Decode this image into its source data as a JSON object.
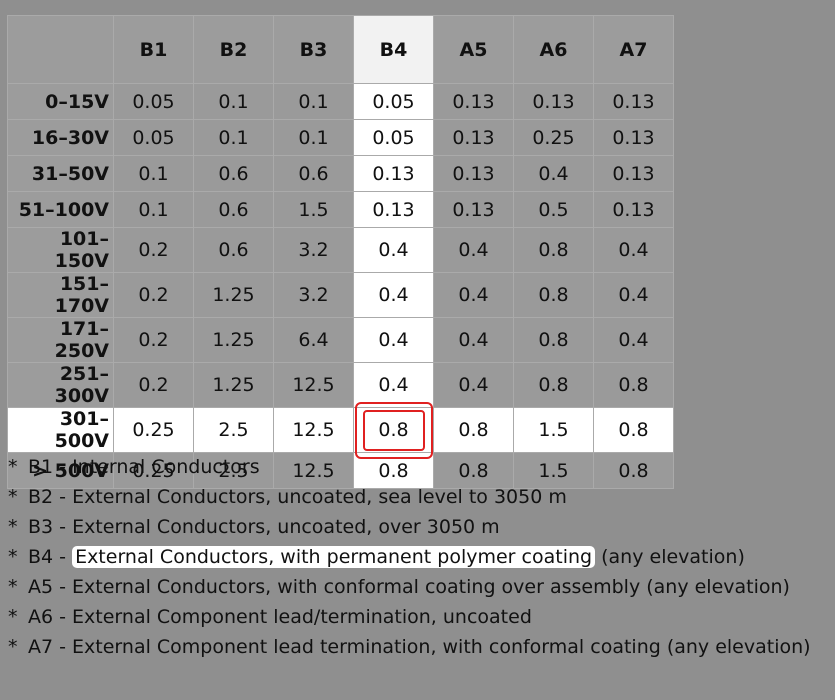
{
  "columns": [
    "B1",
    "B2",
    "B3",
    "B4",
    "A5",
    "A6",
    "A7"
  ],
  "rows": [
    {
      "label": "0–15V",
      "values": [
        "0.05",
        "0.1",
        "0.1",
        "0.05",
        "0.13",
        "0.13",
        "0.13"
      ]
    },
    {
      "label": "16–30V",
      "values": [
        "0.05",
        "0.1",
        "0.1",
        "0.05",
        "0.13",
        "0.25",
        "0.13"
      ]
    },
    {
      "label": "31–50V",
      "values": [
        "0.1",
        "0.6",
        "0.6",
        "0.13",
        "0.13",
        "0.4",
        "0.13"
      ]
    },
    {
      "label": "51–100V",
      "values": [
        "0.1",
        "0.6",
        "1.5",
        "0.13",
        "0.13",
        "0.5",
        "0.13"
      ]
    },
    {
      "label": "101–150V",
      "values": [
        "0.2",
        "0.6",
        "3.2",
        "0.4",
        "0.4",
        "0.8",
        "0.4"
      ]
    },
    {
      "label": "151–170V",
      "values": [
        "0.2",
        "1.25",
        "3.2",
        "0.4",
        "0.4",
        "0.8",
        "0.4"
      ]
    },
    {
      "label": "171–250V",
      "values": [
        "0.2",
        "1.25",
        "6.4",
        "0.4",
        "0.4",
        "0.8",
        "0.4"
      ]
    },
    {
      "label": "251–300V",
      "values": [
        "0.2",
        "1.25",
        "12.5",
        "0.4",
        "0.4",
        "0.8",
        "0.8"
      ]
    },
    {
      "label": "301–500V",
      "values": [
        "0.25",
        "2.5",
        "12.5",
        "0.8",
        "0.8",
        "1.5",
        "0.8"
      ]
    },
    {
      "label": "> 500V",
      "values": [
        "0.25",
        "2.5",
        "12.5",
        "0.8",
        "0.8",
        "1.5",
        "0.8"
      ]
    }
  ],
  "highlight": {
    "column_index": 3,
    "row_index": 8,
    "accent_color": "#e02020"
  },
  "notes": [
    {
      "bullet": "*",
      "prefix": "B1 - ",
      "highlight": "",
      "text": "Internal Conductors"
    },
    {
      "bullet": "*",
      "prefix": "B2 - ",
      "highlight": "",
      "text": "External Conductors, uncoated, sea level to 3050 m"
    },
    {
      "bullet": "*",
      "prefix": "B3 - ",
      "highlight": "",
      "text": "External Conductors, uncoated, over 3050 m"
    },
    {
      "bullet": "*",
      "prefix": "B4 - ",
      "highlight": "External Conductors, with permanent polymer coating",
      "text": " (any elevation)"
    },
    {
      "bullet": "*",
      "prefix": "A5 - ",
      "highlight": "",
      "text": "External Conductors, with conformal coating over assembly (any elevation)"
    },
    {
      "bullet": "*",
      "prefix": "A6 - ",
      "highlight": "",
      "text": "External Component lead/termination, uncoated"
    },
    {
      "bullet": "*",
      "prefix": "A7 - ",
      "highlight": "",
      "text": "External Component lead termination, with conformal coating (any elevation)"
    }
  ]
}
